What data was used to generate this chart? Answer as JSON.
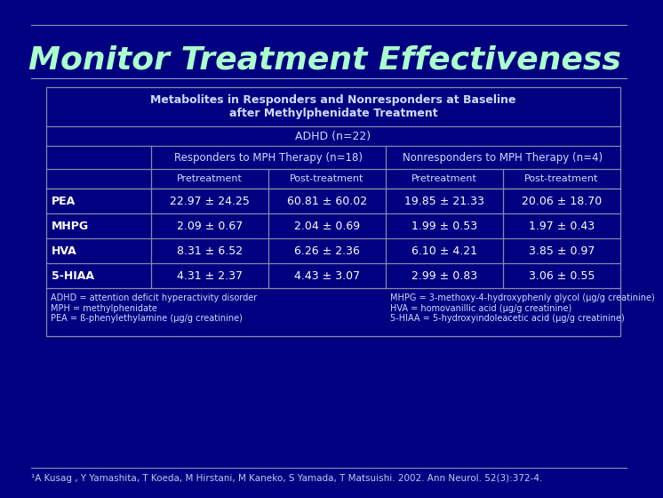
{
  "title": "Monitor Treatment Effectiveness",
  "bg_color": "#000080",
  "table_title": "Metabolites in Responders and Nonresponders at Baseline\nafter Methylphenidate Treatment",
  "adhd_label": "ADHD (n=22)",
  "col_headers_1": [
    "Responders to MPH Therapy (n=18)",
    "Nonresponders to MPH Therapy (n=4)"
  ],
  "col_headers_2": [
    "Pretreatment",
    "Post-treatment",
    "Pretreatment",
    "Post-treatment"
  ],
  "row_labels": [
    "PEA",
    "MHPG",
    "HVA",
    "5-HIAA"
  ],
  "data": [
    [
      "22.97 ± 24.25",
      "60.81 ± 60.02",
      "19.85 ± 21.33",
      "20.06 ± 18.70"
    ],
    [
      "2.09 ± 0.67",
      "2.04 ± 0.69",
      "1.99 ± 0.53",
      "1.97 ± 0.43"
    ],
    [
      "8.31 ± 6.52",
      "6.26 ± 2.36",
      "6.10 ± 4.21",
      "3.85 ± 0.97"
    ],
    [
      "4.31 ± 2.37",
      "4.43 ± 3.07",
      "2.99 ± 0.83",
      "3.06 ± 0.55"
    ]
  ],
  "footnote_left": "ADHD = attention deficit hyperactivity disorder\nMPH = methylphenidate\nPEA = ß-phenylethylamine (µg/g creatinine)",
  "footnote_right": "MHPG = 3-methoxy-4-hydroxyphenly glycol (µg/g creatinine)\nHVA = homovanillic acid (µg/g creatinine)\n5-HIAA = 5-hydroxyindoleacetic acid (µg/g creatinine)",
  "citation": "¹A Kusag , Y Yamashita, T Koeda, M Hirstani, M Kaneko, S Yamada, T Matsuishi. 2002. Ann Neurol. 52(3):372-4.",
  "table_border": "#8888AA",
  "header_text_color": "#CCDDFF",
  "data_text_color": "#FFFFFF",
  "row_label_color": "#FFFFFF",
  "title_color": "#AAFFCC",
  "title_fontsize": 26,
  "table_title_fontsize": 9,
  "adhd_fontsize": 9,
  "hdr1_fontsize": 8.5,
  "hdr2_fontsize": 8,
  "data_fontsize": 9,
  "footnote_fontsize": 7,
  "citation_fontsize": 7.5
}
